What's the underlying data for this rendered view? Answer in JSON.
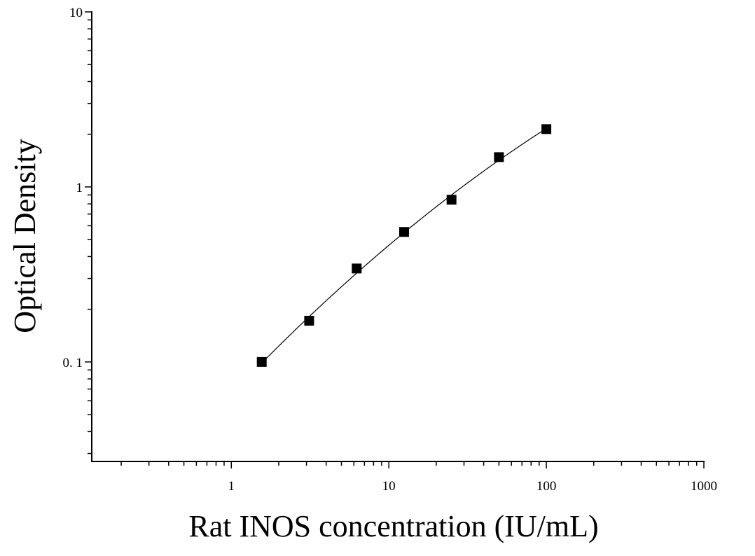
{
  "chart_data": {
    "type": "scatter",
    "xlabel": "Rat INOS concentration (IU/mL)",
    "ylabel": "Optical Density",
    "xscale": "log",
    "yscale": "log",
    "xlim": [
      0.13,
      1000
    ],
    "ylim": [
      0.027,
      10
    ],
    "xticks": [
      1,
      10,
      100,
      1000
    ],
    "xtick_labels": [
      "1",
      "10",
      "100",
      "1000"
    ],
    "yticks": [
      0.1,
      1,
      10
    ],
    "ytick_labels": [
      "0. 1",
      "1",
      "10"
    ],
    "grid": false,
    "legend": "none",
    "series": [
      {
        "marker": "square",
        "color": "#000000",
        "x": [
          1.56,
          3.12,
          6.25,
          12.5,
          25,
          50,
          100
        ],
        "y": [
          0.1,
          0.172,
          0.342,
          0.553,
          0.845,
          1.48,
          2.14
        ]
      }
    ],
    "fit_curve": {
      "color": "#000000",
      "x_range": [
        1.56,
        100
      ]
    }
  }
}
